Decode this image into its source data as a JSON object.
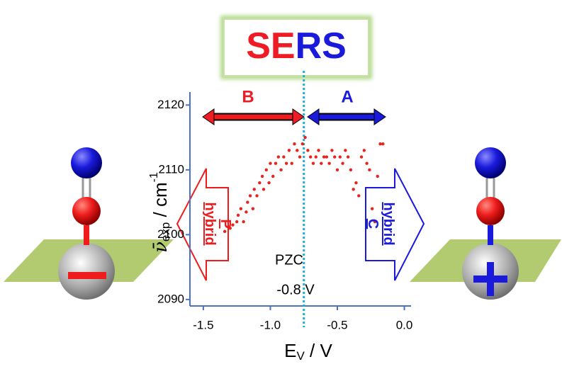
{
  "chart_data": {
    "type": "scatter",
    "title": [
      {
        "text": "SE",
        "color": "#ee1c24"
      },
      {
        "text": "RS",
        "color": "#1a1adb"
      }
    ],
    "xlabel": {
      "main": "E",
      "sub": "V",
      "rest": " / V"
    },
    "ylabel": {
      "symbol": "ν̄",
      "sub": "exp",
      "rest": " / cm",
      "sup": "-1"
    },
    "xlim": [
      -1.6,
      0.05
    ],
    "ylim": [
      2089,
      2122
    ],
    "xticks": [
      -1.5,
      {
        "value": -1.0,
        "label": "-1.0"
      },
      -0.5,
      {
        "value": 0.0,
        "label": "0.0"
      }
    ],
    "yticks": [
      2090,
      2100,
      2110,
      2120
    ],
    "color": "#e8231c",
    "x": [
      -1.34,
      -1.3,
      -1.28,
      -1.25,
      -1.24,
      -1.22,
      -1.2,
      -1.18,
      -1.17,
      -1.15,
      -1.13,
      -1.12,
      -1.1,
      -1.08,
      -1.06,
      -1.05,
      -1.03,
      -1.01,
      -1.0,
      -0.98,
      -0.96,
      -0.94,
      -0.92,
      -0.9,
      -0.88,
      -0.86,
      -0.84,
      -0.82,
      -0.8,
      -0.78,
      -0.76,
      -0.74,
      -0.72,
      -0.7,
      -0.68,
      -0.66,
      -0.64,
      -0.62,
      -0.6,
      -0.58,
      -0.56,
      -0.54,
      -0.52,
      -0.5,
      -0.48,
      -0.46,
      -0.44,
      -0.42,
      -0.4,
      -0.38,
      -0.36,
      -0.34,
      -0.32,
      -0.3,
      -0.28,
      -0.26,
      -0.24,
      -0.22,
      -0.2,
      -0.18,
      -0.16
    ],
    "values": [
      2100.5,
      2101,
      2101.5,
      2102,
      2103,
      2104,
      2102,
      2103.5,
      2105,
      2106,
      2104,
      2107,
      2106,
      2108,
      2109,
      2107,
      2110,
      2108,
      2111,
      2109,
      2111,
      2112,
      2110,
      2112,
      2111,
      2113,
      2111,
      2114,
      2113,
      2112,
      2114,
      2115,
      2113,
      2112,
      2111,
      2112,
      2113,
      2111,
      2112,
      2112,
      2111,
      2113,
      2112,
      2110,
      2112,
      2111,
      2113,
      2112,
      2110,
      2107,
      2108,
      2106,
      2112,
      2113,
      2111,
      2110,
      2104,
      2102,
      2109,
      2114,
      2114
    ],
    "vline": -0.75,
    "range_labels": [
      {
        "text": "B",
        "color": "#ee1c24"
      },
      {
        "text": "A",
        "color": "#1a1adb"
      }
    ],
    "pzc": [
      "PZC",
      "-0.8 V"
    ],
    "left_arrow": [
      "P",
      "hybrid"
    ],
    "right_arrow": [
      "hybrid",
      "C"
    ]
  }
}
